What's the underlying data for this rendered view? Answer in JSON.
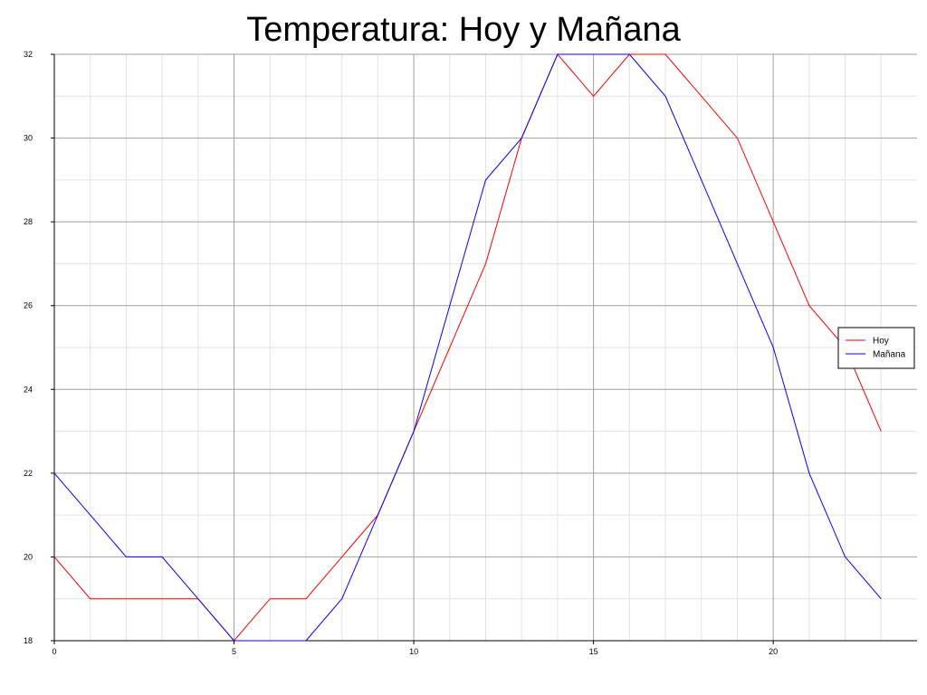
{
  "chart_data": {
    "type": "line",
    "title": "Temperatura: Hoy y Mañana",
    "xlabel": "",
    "ylabel": "",
    "xlim": [
      0,
      24
    ],
    "ylim": [
      18,
      32
    ],
    "x_ticks": [
      0,
      5,
      10,
      15,
      20
    ],
    "y_ticks": [
      18,
      20,
      22,
      24,
      26,
      28,
      30,
      32
    ],
    "x_minor_step": 1,
    "y_minor_step": 1,
    "grid": true,
    "legend_position": "right",
    "x": [
      0,
      1,
      2,
      3,
      4,
      5,
      6,
      7,
      8,
      9,
      10,
      11,
      12,
      13,
      14,
      15,
      16,
      17,
      18,
      19,
      20,
      21,
      22,
      23
    ],
    "series": [
      {
        "name": "Hoy",
        "color": "#ff0000",
        "values": [
          20,
          19,
          19,
          19,
          19,
          18,
          19,
          19,
          20,
          21,
          23,
          25,
          27,
          30,
          32,
          31,
          32,
          32,
          31,
          30,
          28,
          26,
          25,
          23
        ]
      },
      {
        "name": "Mañana",
        "color": "#0000ff",
        "values": [
          22,
          21,
          20,
          20,
          19,
          18,
          18,
          18,
          19,
          21,
          23,
          26,
          29,
          30,
          32,
          32,
          32,
          31,
          29,
          27,
          25,
          22,
          20,
          19
        ]
      }
    ]
  }
}
